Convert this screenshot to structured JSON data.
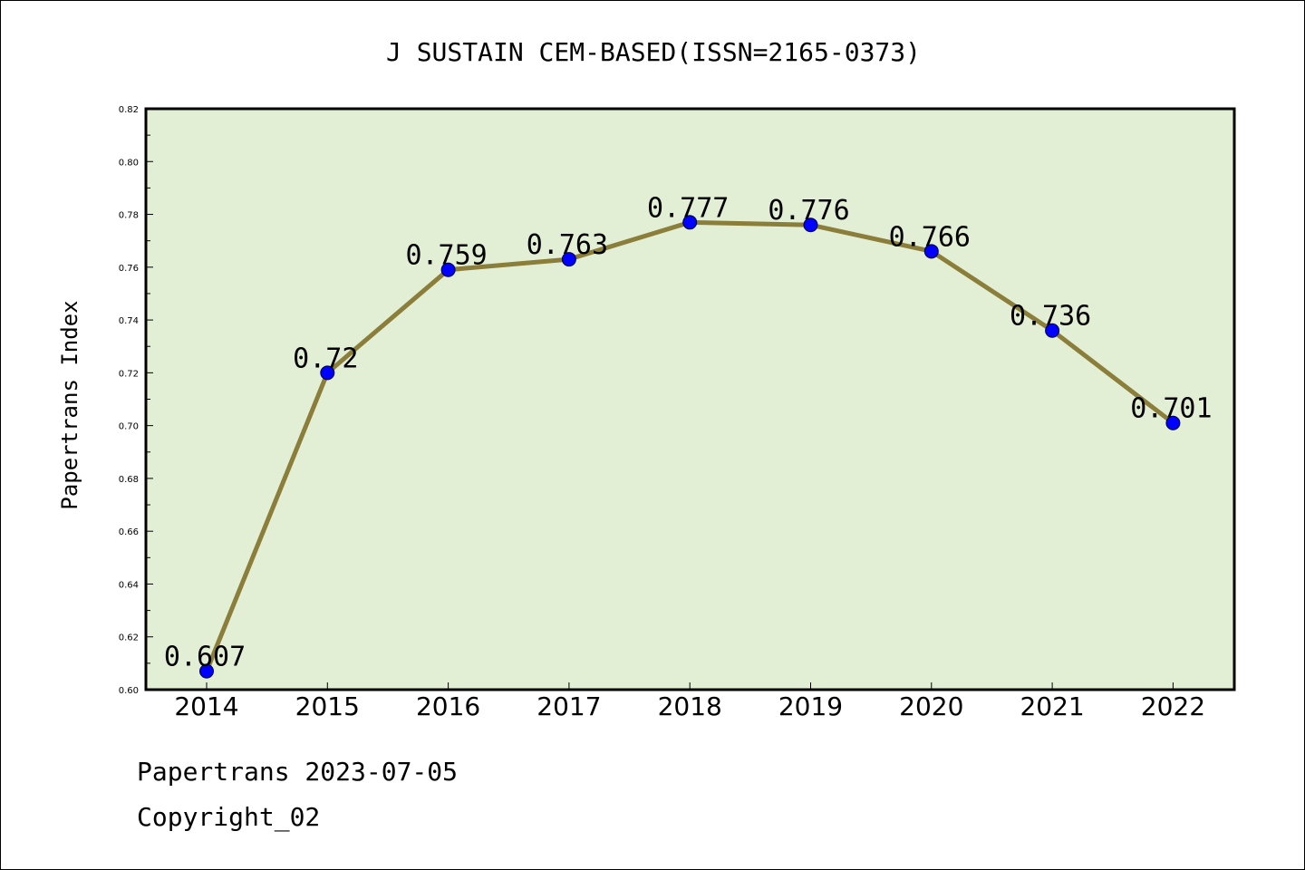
{
  "chart_data": {
    "type": "line",
    "title": "J SUSTAIN CEM-BASED(ISSN=2165-0373)",
    "xlabel": "",
    "ylabel": "Papertrans Index",
    "categories": [
      "2014",
      "2015",
      "2016",
      "2017",
      "2018",
      "2019",
      "2020",
      "2021",
      "2022"
    ],
    "series": [
      {
        "values": [
          0.607,
          0.72,
          0.759,
          0.763,
          0.777,
          0.776,
          0.766,
          0.736,
          0.701
        ],
        "labels": [
          "0.607",
          "0.72",
          "0.759",
          "0.763",
          "0.777",
          "0.776",
          "0.766",
          "0.736",
          "0.701"
        ],
        "line_color": "#8b7d3a",
        "marker_color": "#0000ff"
      }
    ],
    "ylim": [
      0.6,
      0.82
    ],
    "yticks": [
      "0.60",
      "0.62",
      "0.64",
      "0.66",
      "0.68",
      "0.70",
      "0.72",
      "0.74",
      "0.76",
      "0.78",
      "0.80",
      "0.82"
    ],
    "plot_background": "#e2efd4",
    "grid": false,
    "legend": "none"
  },
  "footer": {
    "line1": "Papertrans 2023-07-05",
    "line2": "Copyright_02"
  }
}
